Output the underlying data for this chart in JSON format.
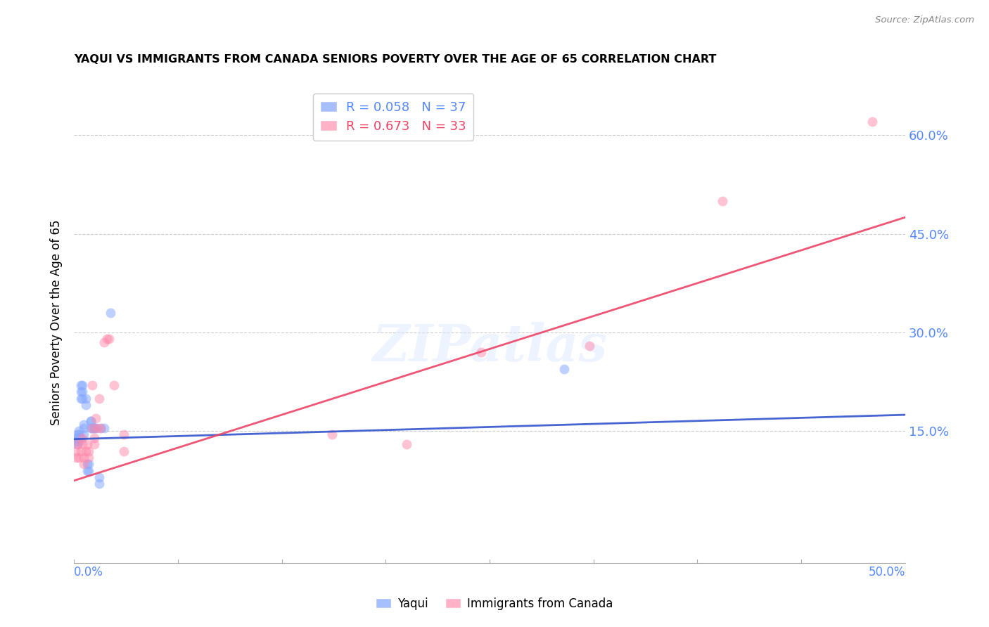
{
  "title": "YAQUI VS IMMIGRANTS FROM CANADA SENIORS POVERTY OVER THE AGE OF 65 CORRELATION CHART",
  "source": "Source: ZipAtlas.com",
  "ylabel": "Seniors Poverty Over the Age of 65",
  "ytick_labels": [
    "15.0%",
    "30.0%",
    "45.0%",
    "60.0%"
  ],
  "ytick_values": [
    0.15,
    0.3,
    0.45,
    0.6
  ],
  "xlim": [
    0.0,
    0.5
  ],
  "ylim": [
    -0.05,
    0.68
  ],
  "legend_entry1": "R = 0.058   N = 37",
  "legend_entry2": "R = 0.673   N = 33",
  "blue_color": "#88aaff",
  "pink_color": "#ff88aa",
  "blue_line_color": "#3355cc",
  "pink_line_color": "#ee4466",
  "blue_scatter_alpha": 0.55,
  "pink_scatter_alpha": 0.5,
  "watermark_text": "ZIPatlas",
  "yaqui_x": [
    0.001,
    0.002,
    0.002,
    0.003,
    0.003,
    0.003,
    0.004,
    0.004,
    0.004,
    0.005,
    0.005,
    0.005,
    0.006,
    0.006,
    0.007,
    0.007,
    0.008,
    0.009,
    0.009,
    0.01,
    0.01,
    0.011,
    0.012,
    0.013,
    0.015,
    0.015,
    0.016,
    0.018,
    0.002,
    0.003,
    0.004,
    0.006,
    0.008,
    0.01,
    0.012,
    0.295,
    0.022
  ],
  "yaqui_y": [
    0.135,
    0.145,
    0.14,
    0.15,
    0.145,
    0.14,
    0.22,
    0.21,
    0.2,
    0.22,
    0.21,
    0.2,
    0.145,
    0.155,
    0.2,
    0.19,
    0.1,
    0.1,
    0.09,
    0.155,
    0.165,
    0.155,
    0.155,
    0.155,
    0.08,
    0.07,
    0.155,
    0.155,
    0.13,
    0.135,
    0.14,
    0.16,
    0.09,
    0.165,
    0.155,
    0.245,
    0.33
  ],
  "canada_x": [
    0.001,
    0.001,
    0.002,
    0.003,
    0.004,
    0.005,
    0.005,
    0.006,
    0.006,
    0.007,
    0.008,
    0.009,
    0.009,
    0.011,
    0.011,
    0.012,
    0.012,
    0.013,
    0.014,
    0.015,
    0.016,
    0.018,
    0.02,
    0.021,
    0.024,
    0.03,
    0.03,
    0.155,
    0.2,
    0.245,
    0.31,
    0.39,
    0.48
  ],
  "canada_y": [
    0.12,
    0.11,
    0.13,
    0.11,
    0.12,
    0.13,
    0.14,
    0.11,
    0.1,
    0.12,
    0.13,
    0.12,
    0.11,
    0.22,
    0.155,
    0.14,
    0.13,
    0.17,
    0.155,
    0.2,
    0.155,
    0.285,
    0.29,
    0.29,
    0.22,
    0.145,
    0.12,
    0.145,
    0.13,
    0.27,
    0.28,
    0.5,
    0.62
  ],
  "blue_line_y0": 0.138,
  "blue_line_y1": 0.175,
  "pink_line_y0": 0.075,
  "pink_line_y1": 0.475
}
